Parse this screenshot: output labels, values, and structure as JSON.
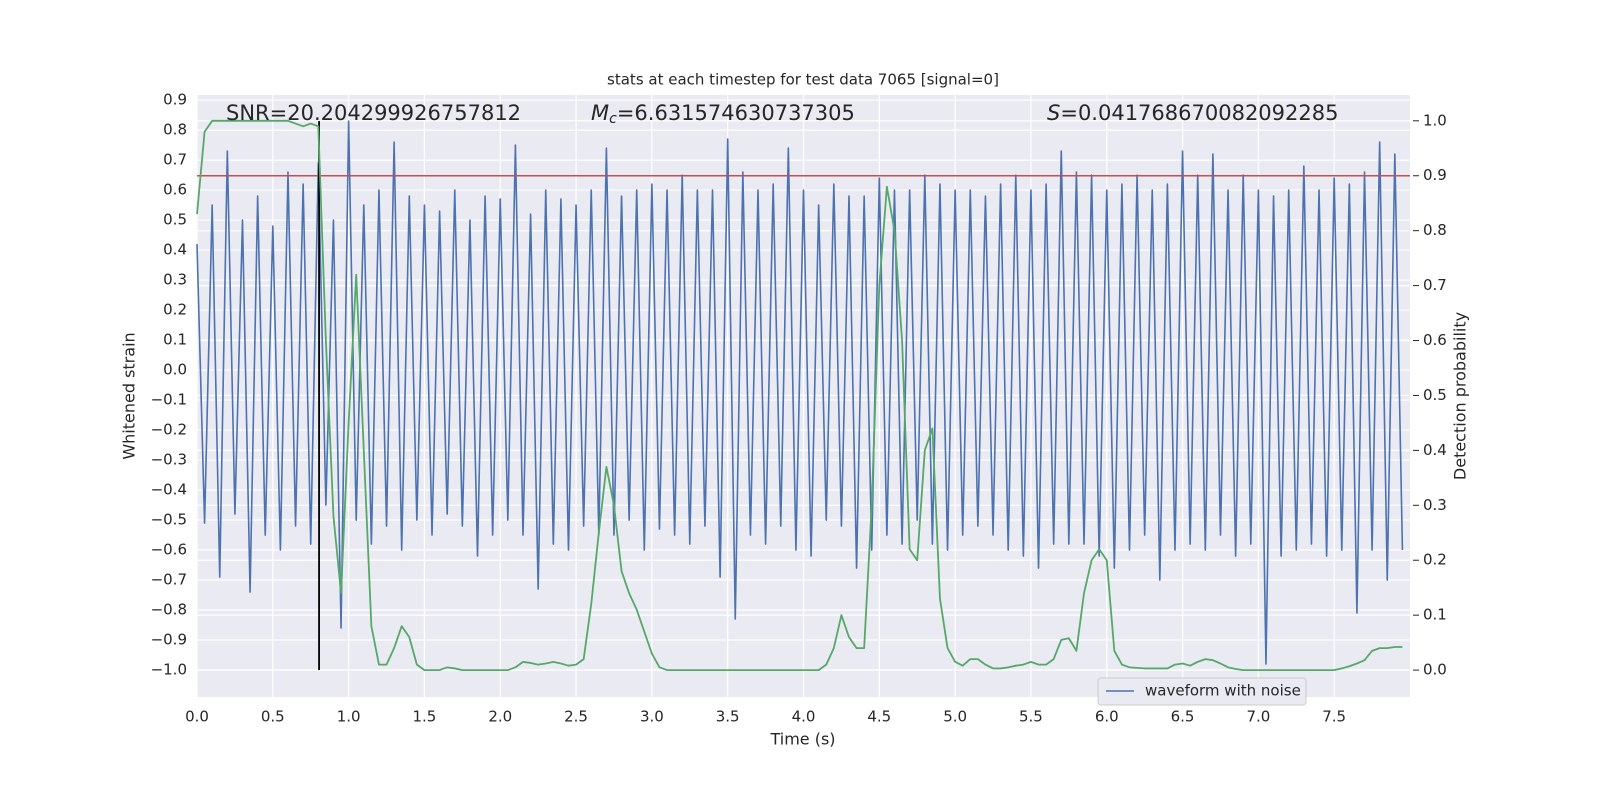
{
  "chart_data": {
    "type": "line",
    "title": "stats at each timestep for test data 7065 [signal=0]",
    "xlabel": "Time (s)",
    "ylabel": "Whitened strain",
    "y2label": "Detection probability",
    "annotations": [
      {
        "text": "SNR=20.204299926757812"
      },
      {
        "symbol": "M",
        "sub": "c",
        "text": "=6.631574630737305"
      },
      {
        "symbol": "S",
        "text": "=0.041768670082092285"
      }
    ],
    "x": [
      0,
      0.05,
      0.1,
      0.15,
      0.2,
      0.25,
      0.3,
      0.35,
      0.4,
      0.45,
      0.5,
      0.55,
      0.6,
      0.65,
      0.7,
      0.75,
      0.8,
      0.85,
      0.9,
      0.95,
      1,
      1.05,
      1.1,
      1.15,
      1.2,
      1.25,
      1.3,
      1.35,
      1.4,
      1.45,
      1.5,
      1.55,
      1.6,
      1.65,
      1.7,
      1.75,
      1.8,
      1.85,
      1.9,
      1.95,
      2,
      2.05,
      2.1,
      2.15,
      2.2,
      2.25,
      2.3,
      2.35,
      2.4,
      2.45,
      2.5,
      2.55,
      2.6,
      2.65,
      2.7,
      2.75,
      2.8,
      2.85,
      2.9,
      2.95,
      3,
      3.05,
      3.1,
      3.15,
      3.2,
      3.25,
      3.3,
      3.35,
      3.4,
      3.45,
      3.5,
      3.55,
      3.6,
      3.65,
      3.7,
      3.75,
      3.8,
      3.85,
      3.9,
      3.95,
      4,
      4.05,
      4.1,
      4.15,
      4.2,
      4.25,
      4.3,
      4.35,
      4.4,
      4.45,
      4.5,
      4.55,
      4.6,
      4.65,
      4.7,
      4.75,
      4.8,
      4.85,
      4.9,
      4.95,
      5,
      5.05,
      5.1,
      5.15,
      5.2,
      5.25,
      5.3,
      5.35,
      5.4,
      5.45,
      5.5,
      5.55,
      5.6,
      5.65,
      5.7,
      5.75,
      5.8,
      5.85,
      5.9,
      5.95,
      6,
      6.05,
      6.1,
      6.15,
      6.2,
      6.25,
      6.3,
      6.35,
      6.4,
      6.45,
      6.5,
      6.55,
      6.6,
      6.65,
      6.7,
      6.75,
      6.8,
      6.85,
      6.9,
      6.95,
      7,
      7.05,
      7.1,
      7.15,
      7.2,
      7.25,
      7.3,
      7.35,
      7.4,
      7.45,
      7.5,
      7.55,
      7.6,
      7.65,
      7.7,
      7.75,
      7.8,
      7.85,
      7.9,
      7.95
    ],
    "series": [
      {
        "name": "waveform with noise",
        "color": "#4c72b0",
        "values": [
          0.42,
          -0.51,
          0.55,
          -0.69,
          0.73,
          -0.48,
          0.5,
          -0.74,
          0.58,
          -0.55,
          0.48,
          -0.6,
          0.66,
          -0.52,
          0.62,
          -0.58,
          0.69,
          -0.45,
          0.5,
          -0.86,
          0.83,
          -0.5,
          0.55,
          -0.58,
          0.6,
          -0.52,
          0.76,
          -0.6,
          0.58,
          -0.5,
          0.55,
          -0.55,
          0.53,
          -0.48,
          0.6,
          -0.52,
          0.5,
          -0.62,
          0.58,
          -0.55,
          0.57,
          -0.5,
          0.75,
          -0.55,
          0.52,
          -0.73,
          0.6,
          -0.58,
          0.57,
          -0.6,
          0.55,
          -0.52,
          0.6,
          -0.55,
          0.74,
          -0.55,
          0.58,
          -0.5,
          0.6,
          -0.6,
          0.62,
          -0.53,
          0.6,
          -0.55,
          0.65,
          -0.58,
          0.6,
          -0.52,
          0.6,
          -0.69,
          0.77,
          -0.83,
          0.66,
          -0.55,
          0.6,
          -0.58,
          0.62,
          -0.52,
          0.74,
          -0.6,
          0.6,
          -0.62,
          0.55,
          -0.5,
          0.62,
          -0.52,
          0.58,
          -0.66,
          0.58,
          -0.6,
          0.64,
          -0.55,
          0.6,
          -0.58,
          0.6,
          -0.5,
          0.65,
          -0.58,
          0.62,
          -0.6,
          0.6,
          -0.55,
          0.6,
          -0.52,
          0.58,
          -0.55,
          0.62,
          -0.6,
          0.65,
          -0.62,
          0.6,
          -0.66,
          0.62,
          -0.58,
          0.73,
          -0.58,
          0.66,
          -0.58,
          0.65,
          -0.62,
          0.6,
          -0.66,
          0.62,
          -0.6,
          0.65,
          -0.55,
          0.6,
          -0.7,
          0.62,
          -0.6,
          0.73,
          -0.58,
          0.65,
          -0.6,
          0.72,
          -0.55,
          0.6,
          -0.62,
          0.65,
          -0.58,
          0.6,
          -0.98,
          0.58,
          -0.62,
          0.6,
          -0.6,
          0.68,
          -0.58,
          0.6,
          -0.62,
          0.64,
          -0.6,
          0.62,
          -0.81,
          0.66,
          -0.6,
          0.76,
          -0.7,
          0.72,
          -0.6
        ]
      },
      {
        "color": "#55a868",
        "axis": "y2",
        "values": [
          0.83,
          0.98,
          1,
          1,
          1,
          1,
          1,
          1,
          1,
          1,
          1,
          1,
          1,
          0.995,
          0.99,
          0.995,
          0.99,
          0.6,
          0.28,
          0.14,
          0.45,
          0.72,
          0.4,
          0.08,
          0.01,
          0.01,
          0.04,
          0.08,
          0.06,
          0.01,
          0,
          0,
          0,
          0.005,
          0.003,
          0,
          0,
          0,
          0,
          0,
          0,
          0,
          0.005,
          0.015,
          0.013,
          0.01,
          0.012,
          0.015,
          0.012,
          0.008,
          0.01,
          0.02,
          0.12,
          0.25,
          0.37,
          0.3,
          0.18,
          0.14,
          0.11,
          0.07,
          0.03,
          0.005,
          0,
          0,
          0,
          0,
          0,
          0,
          0,
          0,
          0,
          0,
          0,
          0,
          0,
          0,
          0,
          0,
          0,
          0,
          0,
          0,
          0,
          0.01,
          0.04,
          0.1,
          0.06,
          0.04,
          0.04,
          0.3,
          0.7,
          0.88,
          0.8,
          0.6,
          0.22,
          0.2,
          0.4,
          0.44,
          0.13,
          0.04,
          0.015,
          0.008,
          0.02,
          0.02,
          0.01,
          0.003,
          0.003,
          0.005,
          0.008,
          0.01,
          0.015,
          0.01,
          0.01,
          0.02,
          0.055,
          0.058,
          0.035,
          0.14,
          0.2,
          0.22,
          0.2,
          0.035,
          0.01,
          0.005,
          0.004,
          0.003,
          0.003,
          0.003,
          0.003,
          0.01,
          0.012,
          0.008,
          0.015,
          0.02,
          0.018,
          0.012,
          0.005,
          0.002,
          0,
          0,
          0,
          0,
          0,
          0,
          0,
          0,
          0,
          0,
          0,
          0,
          0,
          0.003,
          0.007,
          0.012,
          0.018,
          0.035,
          0.04,
          0.04,
          0.042,
          0.042
        ]
      }
    ],
    "hline": {
      "value": 0.9,
      "axis": "y2",
      "color": "#c44e52"
    },
    "vline": {
      "x": 0.805,
      "ymin": -1.0,
      "ymax": 0.83,
      "color": "#000000"
    },
    "xlim": [
      0,
      8
    ],
    "ylim": [
      -1.09,
      0.917
    ],
    "y2lim": [
      -0.049,
      1.047
    ],
    "xticks": [
      {
        "value": 0,
        "label": "0.0"
      },
      0.5,
      {
        "value": 1,
        "label": "1.0"
      },
      1.5,
      {
        "value": 2,
        "label": "2.0"
      },
      2.5,
      {
        "value": 3,
        "label": "3.0"
      },
      3.5,
      {
        "value": 4,
        "label": "4.0"
      },
      4.5,
      {
        "value": 5,
        "label": "5.0"
      },
      5.5,
      {
        "value": 6,
        "label": "6.0"
      },
      6.5,
      {
        "value": 7,
        "label": "7.0"
      },
      7.5
    ],
    "yticks": [
      0.9,
      0.8,
      0.7,
      0.6,
      0.5,
      0.4,
      0.3,
      0.2,
      0.1,
      {
        "value": 0,
        "label": "0.0"
      },
      {
        "value": -0.1,
        "label": "−0.1"
      },
      {
        "value": -0.2,
        "label": "−0.2"
      },
      {
        "value": -0.3,
        "label": "−0.3"
      },
      {
        "value": -0.4,
        "label": "−0.4"
      },
      {
        "value": -0.5,
        "label": "−0.5"
      },
      {
        "value": -0.6,
        "label": "−0.6"
      },
      {
        "value": -0.7,
        "label": "−0.7"
      },
      {
        "value": -0.8,
        "label": "−0.8"
      },
      {
        "value": -0.9,
        "label": "−0.9"
      },
      {
        "value": -1.0,
        "label": "−1.0"
      }
    ],
    "y2ticks": [
      {
        "value": 0,
        "label": "0.0"
      },
      0.1,
      0.2,
      0.3,
      0.4,
      0.5,
      0.6,
      0.7,
      0.8,
      0.9,
      {
        "value": 1,
        "label": "1.0"
      }
    ],
    "grid": true,
    "legend": "lower right"
  }
}
